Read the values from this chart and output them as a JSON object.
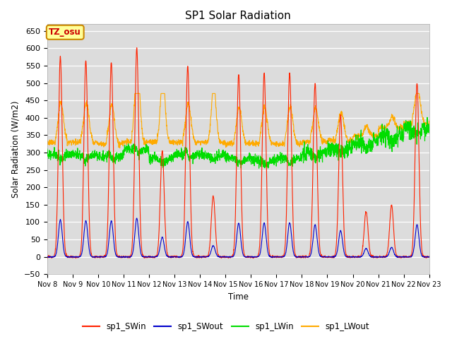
{
  "title": "SP1 Solar Radiation",
  "ylabel": "Solar Radiation (W/m2)",
  "xlabel": "Time",
  "ylim": [
    -50,
    670
  ],
  "plot_bg_color": "#dcdcdc",
  "series_colors": {
    "SWin": "#ff2200",
    "SWout": "#0000cc",
    "LWin": "#00dd00",
    "LWout": "#ffaa00"
  },
  "series_labels": [
    "sp1_SWin",
    "sp1_SWout",
    "sp1_LWin",
    "sp1_LWout"
  ],
  "x_tick_labels": [
    "Nov 8",
    "Nov 9",
    "Nov 10",
    "Nov 11",
    "Nov 12",
    "Nov 13",
    "Nov 14",
    "Nov 15",
    "Nov 16",
    "Nov 17",
    "Nov 18",
    "Nov 19",
    "Nov 20",
    "Nov 21",
    "Nov 22",
    "Nov 23"
  ],
  "tz_label": "TZ_osu",
  "tz_box_color": "#ffff99",
  "tz_border_color": "#cc8800",
  "tz_text_color": "#cc0000",
  "n_days": 15,
  "pts_per_day": 144
}
